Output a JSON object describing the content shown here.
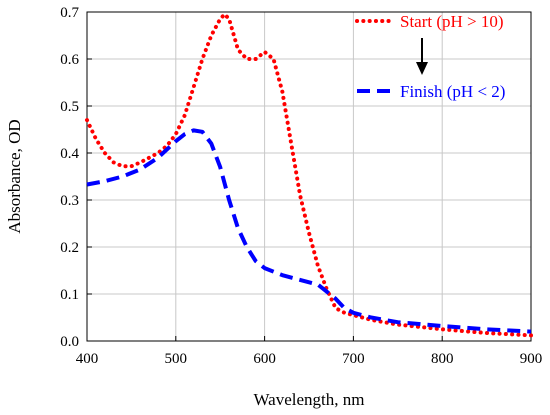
{
  "chart_data": {
    "type": "line",
    "xlabel": "Wavelength, nm",
    "ylabel": "Absorbance, OD",
    "xlim": [
      400,
      900
    ],
    "ylim": [
      0.0,
      0.7
    ],
    "xticks": [
      400,
      500,
      600,
      700,
      800,
      900
    ],
    "xtick_labels": [
      "400",
      "500",
      "600",
      "700",
      "800",
      "900"
    ],
    "yticks": [
      0.0,
      0.1,
      0.2,
      0.3,
      0.4,
      0.5,
      0.6,
      0.7
    ],
    "ytick_labels": [
      "0.0",
      "0.1",
      "0.2",
      "0.3",
      "0.4",
      "0.5",
      "0.6",
      "0.7"
    ],
    "grid": true,
    "legend_position": "top-right",
    "annotation": "arrow from Start to Finish",
    "series": [
      {
        "name": "Start (pH > 10)",
        "color": "#ff0000",
        "style": "dotted",
        "x": [
          400,
          410,
          420,
          430,
          440,
          450,
          460,
          470,
          480,
          490,
          500,
          510,
          520,
          530,
          540,
          550,
          555,
          560,
          570,
          580,
          590,
          600,
          610,
          620,
          630,
          640,
          650,
          660,
          670,
          680,
          690,
          700,
          720,
          750,
          800,
          850,
          900
        ],
        "y": [
          0.47,
          0.43,
          0.4,
          0.38,
          0.372,
          0.372,
          0.38,
          0.39,
          0.4,
          0.415,
          0.44,
          0.48,
          0.54,
          0.6,
          0.65,
          0.685,
          0.695,
          0.685,
          0.62,
          0.6,
          0.6,
          0.615,
          0.6,
          0.53,
          0.42,
          0.31,
          0.23,
          0.16,
          0.11,
          0.07,
          0.06,
          0.055,
          0.045,
          0.035,
          0.025,
          0.017,
          0.012
        ]
      },
      {
        "name": "Finish (pH < 2)",
        "color": "#0000ff",
        "style": "dashed",
        "x": [
          400,
          420,
          440,
          460,
          480,
          500,
          510,
          520,
          530,
          540,
          550,
          560,
          570,
          580,
          590,
          600,
          620,
          640,
          660,
          680,
          690,
          700,
          720,
          750,
          800,
          850,
          900
        ],
        "y": [
          0.333,
          0.34,
          0.35,
          0.365,
          0.39,
          0.425,
          0.44,
          0.448,
          0.445,
          0.42,
          0.37,
          0.3,
          0.24,
          0.2,
          0.17,
          0.155,
          0.14,
          0.13,
          0.12,
          0.09,
          0.07,
          0.06,
          0.05,
          0.04,
          0.032,
          0.025,
          0.02
        ]
      }
    ]
  }
}
